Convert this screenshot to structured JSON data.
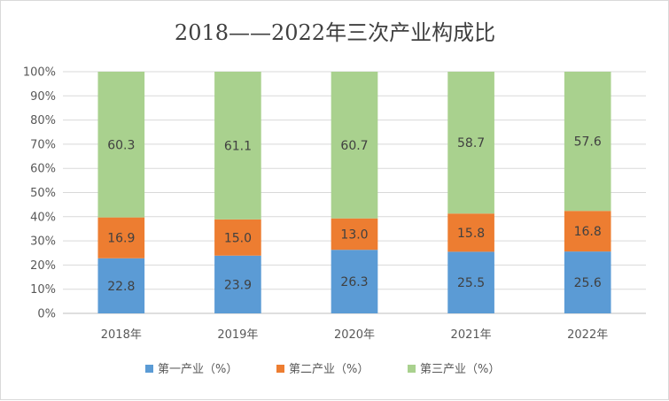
{
  "chart_data": {
    "type": "bar",
    "stacked": true,
    "title": "2018——2022年三次产业构成比",
    "categories": [
      "2018年",
      "2019年",
      "2020年",
      "2021年",
      "2022年"
    ],
    "series": [
      {
        "name": "第一产业（%）",
        "color": "#5b9bd5",
        "values": [
          22.8,
          23.9,
          26.3,
          25.5,
          25.6
        ]
      },
      {
        "name": "第二产业（%）",
        "color": "#ed7d31",
        "values": [
          16.9,
          15.0,
          13.0,
          15.8,
          16.8
        ]
      },
      {
        "name": "第三产业（%）",
        "color": "#a9d18e",
        "values": [
          60.3,
          61.1,
          60.7,
          58.7,
          57.6
        ]
      }
    ],
    "ylim": [
      0,
      100
    ],
    "y_ticks": [
      "0%",
      "10%",
      "20%",
      "30%",
      "40%",
      "50%",
      "60%",
      "70%",
      "80%",
      "90%",
      "100%"
    ],
    "grid": true,
    "legend": "bottom",
    "data_label_format": "0.0"
  }
}
